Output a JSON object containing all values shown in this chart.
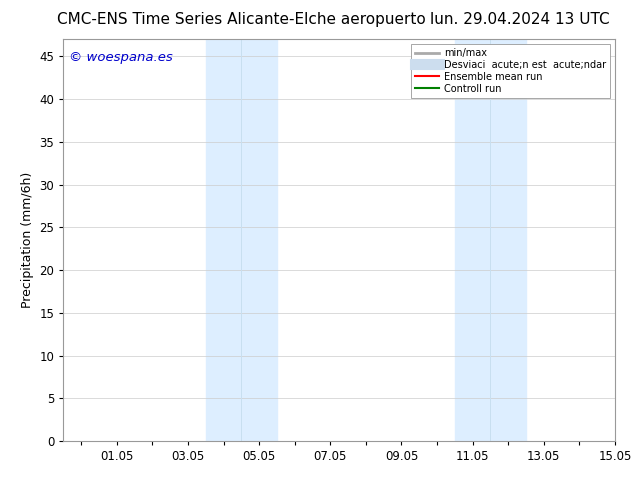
{
  "title_left": "CMC-ENS Time Series Alicante-Elche aeropuerto",
  "title_right": "lun. 29.04.2024 13 UTC",
  "ylabel": "Precipitation (mm/6h)",
  "watermark": "© woespana.es",
  "watermark_color": "#0000cc",
  "yticks": [
    0,
    5,
    10,
    15,
    20,
    25,
    30,
    35,
    40,
    45
  ],
  "ylim": [
    0,
    47
  ],
  "xlim_start": -0.5,
  "xlim_end": 14.5,
  "xtick_labels": [
    "",
    "01.05",
    "",
    "03.05",
    "",
    "05.05",
    "",
    "07.05",
    "",
    "09.05",
    "",
    "11.05",
    "",
    "13.05",
    "",
    "15.05"
  ],
  "xtick_positions": [
    0,
    1,
    2,
    3,
    4,
    5,
    6,
    7,
    8,
    9,
    10,
    11,
    12,
    13,
    14,
    15
  ],
  "shaded_regions": [
    {
      "x_start": 3.5,
      "x_end": 5.5
    },
    {
      "x_start": 10.5,
      "x_end": 12.5
    }
  ],
  "shade_color": "#ddeeff",
  "legend_entries": [
    {
      "label": "min/max",
      "color": "#aaaaaa",
      "lw": 2,
      "style": "-"
    },
    {
      "label": "Desviaci  acute;n est  acute;ndar",
      "color": "#ccddee",
      "lw": 8,
      "style": "-"
    },
    {
      "label": "Ensemble mean run",
      "color": "#ff0000",
      "lw": 1.5,
      "style": "-"
    },
    {
      "label": "Controll run",
      "color": "#008000",
      "lw": 1.5,
      "style": "-"
    }
  ],
  "background_color": "#ffffff",
  "title_fontsize": 11,
  "ylabel_fontsize": 9,
  "tick_fontsize": 8.5
}
